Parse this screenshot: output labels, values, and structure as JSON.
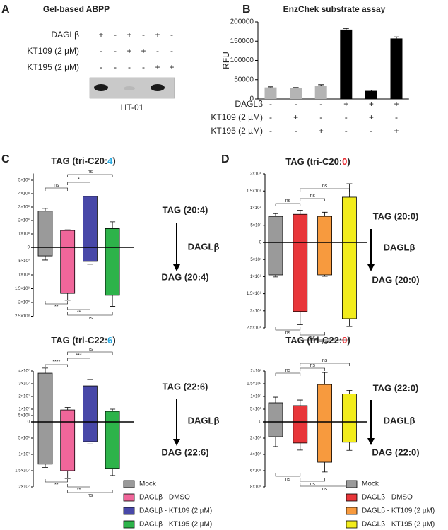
{
  "panel_labels": [
    "A",
    "B",
    "C",
    "D"
  ],
  "gel": {
    "title": "Gel-based ABPP",
    "rows": [
      {
        "name": "DAGLβ",
        "signs": [
          "+",
          "-",
          "+",
          "-",
          "+",
          "-"
        ]
      },
      {
        "name": "KT109 (2 µM)",
        "signs": [
          "-",
          "-",
          "+",
          "+",
          "-",
          "-"
        ]
      },
      {
        "name": "KT195 (2 µM)",
        "signs": [
          "-",
          "-",
          "-",
          "-",
          "+",
          "+"
        ]
      }
    ],
    "caption": "HT-01"
  },
  "chart_data": [
    {
      "type": "bar",
      "title": "EnzChek substrate assay",
      "ylabel": "RFU",
      "values": [
        30000,
        28000,
        34000,
        180000,
        21000,
        157000
      ],
      "errors": [
        1500,
        1500,
        3000,
        3000,
        2000,
        4000
      ],
      "colors": [
        "#b4b4b4",
        "#b4b4b4",
        "#b4b4b4",
        "#000000",
        "#000000",
        "#000000"
      ],
      "ylim": [
        0,
        200000
      ],
      "yticks": [
        0,
        50000,
        100000,
        150000,
        200000
      ],
      "conditions": [
        {
          "name": "DAGLβ",
          "signs": [
            "-",
            "-",
            "-",
            "+",
            "+",
            "+"
          ]
        },
        {
          "name": "KT109 (2 µM)",
          "signs": [
            "-",
            "+",
            "-",
            "-",
            "+",
            "-"
          ]
        },
        {
          "name": "KT195 (2 µM)",
          "signs": [
            "-",
            "-",
            "+",
            "-",
            "-",
            "+"
          ]
        }
      ]
    },
    {
      "type": "diverging",
      "title": [
        "TAG (tri-C20:",
        "4",
        ")"
      ],
      "title_color": "#29abe2",
      "colors": [
        "#9a9a9a",
        "#f0669a",
        "#4848a8",
        "#2db34a"
      ],
      "tag": [
        270000000.0,
        126000000.0,
        380000000.0,
        140000000.0
      ],
      "tag_err": [
        20000000.0,
        5000000.0,
        70000000.0,
        50000000.0
      ],
      "dag": [
        31000000.0,
        167000000.0,
        51000000.0,
        174000000.0
      ],
      "dag_err": [
        15000000.0,
        25000000.0,
        10000000.0,
        40000000.0
      ],
      "ylim": [
        0,
        550000000.0
      ],
      "yticks": [
        0,
        {
          "value": 100000000.0,
          "label": "1×10⁸"
        },
        {
          "value": 200000000.0,
          "label": "2×10⁸"
        },
        {
          "value": 300000000.0,
          "label": "3×10⁸"
        },
        {
          "value": 400000000.0,
          "label": "4×10⁸"
        },
        {
          "value": 500000000.0,
          "label": "5×10⁸"
        }
      ],
      "y2lim": [
        0,
        250000000.0
      ],
      "y2ticks": [
        {
          "value": 50000000.0,
          "label": "5×10⁷"
        },
        {
          "value": 100000000.0,
          "label": "1×10⁸"
        },
        {
          "value": 150000000.0,
          "label": "1.5×10⁸"
        },
        {
          "value": 200000000.0,
          "label": "2×10⁸"
        },
        {
          "value": 250000000.0,
          "label": "2.5×10⁸"
        }
      ],
      "top_brackets": [
        {
          "between": [
            0,
            1
          ],
          "label": "ns"
        },
        {
          "between": [
            1,
            2
          ],
          "label": "*"
        },
        {
          "between": [
            1,
            3
          ],
          "label": "ns"
        }
      ],
      "bottom_brackets": [
        {
          "between": [
            0,
            1
          ],
          "label": "**"
        },
        {
          "between": [
            1,
            2
          ],
          "label": "**"
        },
        {
          "between": [
            1,
            3
          ],
          "label": "ns"
        }
      ],
      "annotations": [
        "TAG (20:4)",
        "DAGLβ",
        "DAG (20:4)"
      ]
    },
    {
      "type": "diverging",
      "title": [
        "TAG (tri-C22:",
        "6",
        ")"
      ],
      "title_color": "#29abe2",
      "categories": [
        "Mock",
        "DAGLβ - DMSO",
        "DAGLβ - KT109 (2 µM)",
        "DAGLβ - KT195 (2 µM)"
      ],
      "colors": [
        "#9a9a9a",
        "#f0669a",
        "#4848a8",
        "#2db34a"
      ],
      "tag": [
        38300000.0,
        9400000.0,
        28300000.0,
        8300000.0
      ],
      "tag_err": [
        4000000.0,
        2000000.0,
        5000000.0,
        1700000.0
      ],
      "dag": [
        13000000.0,
        15000000.0,
        6100000.0,
        14300000.0
      ],
      "dag_err": [
        1000000.0,
        2400000.0,
        700000.0,
        2200000.0
      ],
      "ylim": [
        0,
        40000000.0
      ],
      "yticks": [
        0,
        {
          "value": 5000000.0,
          "label": "5×10⁶"
        },
        {
          "value": 10000000.0,
          "label": "1×10⁷"
        },
        {
          "value": 20000000.0,
          "label": "2×10⁷"
        },
        {
          "value": 30000000.0,
          "label": "3×10⁷"
        },
        {
          "value": 40000000.0,
          "label": "4×10⁷"
        }
      ],
      "y2lim": [
        0,
        20000000.0
      ],
      "y2ticks": [
        {
          "value": 5000000.0,
          "label": "5×10⁶"
        },
        {
          "value": 10000000.0,
          "label": "1×10⁷"
        },
        {
          "value": 15000000.0,
          "label": "1.5×10⁷"
        },
        {
          "value": 20000000.0,
          "label": "2×10⁷"
        }
      ],
      "top_brackets": [
        {
          "between": [
            0,
            1
          ],
          "label": "****"
        },
        {
          "between": [
            1,
            2
          ],
          "label": "***"
        },
        {
          "between": [
            1,
            3
          ],
          "label": "ns"
        }
      ],
      "bottom_brackets": [
        {
          "between": [
            0,
            1
          ],
          "label": "**"
        },
        {
          "between": [
            1,
            2
          ],
          "label": "**"
        },
        {
          "between": [
            1,
            3
          ],
          "label": "ns"
        }
      ],
      "annotations": [
        "TAG (22:6)",
        "DAGLβ",
        "DAG (22:6)"
      ]
    },
    {
      "type": "diverging",
      "title": [
        "TAG (tri-C20:",
        "0",
        ")"
      ],
      "title_color": "#e8252b",
      "colors": [
        "#9a9a9a",
        "#e8363a",
        "#f79a3e",
        "#f2ec1c"
      ],
      "tag": [
        76000000.0,
        82000000.0,
        76000000.0,
        132000000.0
      ],
      "tag_err": [
        8000000.0,
        12000000.0,
        12000000.0,
        39000000.0
      ],
      "dag": [
        95000000.0,
        202000000.0,
        95000000.0,
        223000000.0
      ],
      "dag_err": [
        6000000.0,
        39000000.0,
        4000000.0,
        23000000.0
      ],
      "ylim": [
        0,
        200000000.0
      ],
      "yticks": [
        0,
        {
          "value": 50000000.0,
          "label": "5×10⁷"
        },
        {
          "value": 100000000.0,
          "label": "1×10⁸"
        },
        {
          "value": 150000000.0,
          "label": "1.5×10⁸"
        },
        {
          "value": 200000000.0,
          "label": "2×10⁸"
        }
      ],
      "y2lim": [
        0,
        250000000.0
      ],
      "y2ticks": [
        {
          "value": 50000000.0,
          "label": "5×10⁷"
        },
        {
          "value": 100000000.0,
          "label": "1×10⁸"
        },
        {
          "value": 150000000.0,
          "label": "1.5×10⁸"
        },
        {
          "value": 200000000.0,
          "label": "2×10⁸"
        },
        {
          "value": 250000000.0,
          "label": "2.5×10⁸"
        }
      ],
      "top_brackets": [
        {
          "between": [
            0,
            1
          ],
          "label": "ns"
        },
        {
          "between": [
            1,
            2
          ],
          "label": "ns"
        },
        {
          "between": [
            1,
            3
          ],
          "label": "ns"
        }
      ],
      "bottom_brackets": [
        {
          "between": [
            0,
            1
          ],
          "label": "ns"
        },
        {
          "between": [
            1,
            2
          ],
          "label": "ns"
        },
        {
          "between": [
            1,
            3
          ],
          "label": "ns"
        }
      ],
      "annotations": [
        "TAG (20:0)",
        "DAGLβ",
        "DAG (20:0)"
      ]
    },
    {
      "type": "diverging",
      "title": [
        "TAG (tri-C22:",
        "0",
        ")"
      ],
      "title_color": "#e8252b",
      "categories": [
        "Mock",
        "DAGLβ - DMSO",
        "DAGLβ - KT109 (2 µM)",
        "DAGLβ - KT195 (2 µM)"
      ],
      "colors": [
        "#9a9a9a",
        "#e8363a",
        "#f79a3e",
        "#f2ec1c"
      ],
      "tag": [
        7500000.0,
        6400000.0,
        14700000.0,
        11000000.0
      ],
      "tag_err": [
        2200000.0,
        2200000.0,
        4700000.0,
        1400000.0
      ],
      "dag": [
        1830000.0,
        2600000.0,
        4960000.0,
        2500000.0
      ],
      "dag_err": [
        1200000.0,
        870000.0,
        1200000.0,
        1000000.0
      ],
      "ylim": [
        0,
        20000000.0
      ],
      "yticks": [
        0,
        {
          "value": 5000000.0,
          "label": "5×10⁶"
        },
        {
          "value": 10000000.0,
          "label": "1×10⁷"
        },
        {
          "value": 15000000.0,
          "label": "1.5×10⁷"
        },
        {
          "value": 20000000.0,
          "label": "2×10⁷"
        }
      ],
      "y2lim": [
        0,
        8000000.0
      ],
      "y2ticks": [
        {
          "value": 2000000.0,
          "label": "2×10⁶"
        },
        {
          "value": 4000000.0,
          "label": "4×10⁶"
        },
        {
          "value": 6000000.0,
          "label": "6×10⁶"
        },
        {
          "value": 8000000.0,
          "label": "8×10⁶"
        }
      ],
      "top_brackets": [
        {
          "between": [
            0,
            1
          ],
          "label": "ns"
        },
        {
          "between": [
            1,
            2
          ],
          "label": "ns"
        },
        {
          "between": [
            1,
            3
          ],
          "label": "ns"
        }
      ],
      "bottom_brackets": [
        {
          "between": [
            0,
            1
          ],
          "label": "ns"
        },
        {
          "between": [
            1,
            2
          ],
          "label": "ns"
        },
        {
          "between": [
            1,
            3
          ],
          "label": "ns"
        }
      ],
      "annotations": [
        "TAG (22:0)",
        "DAGLβ",
        "DAG (22:0)"
      ]
    }
  ]
}
